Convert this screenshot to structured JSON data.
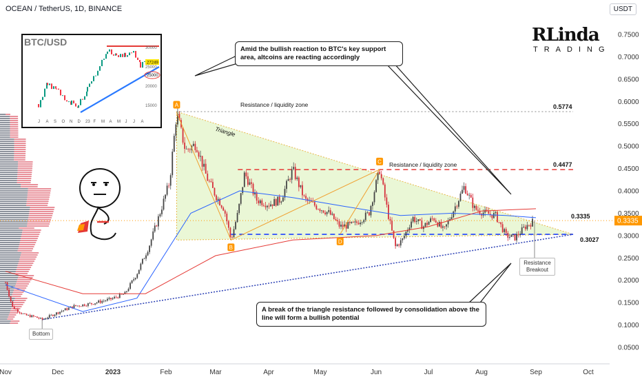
{
  "header": {
    "title": "OCEAN / TetherUS, 1D, BINANCE",
    "currency": "USDT"
  },
  "brand": {
    "line1": "RLinda",
    "line2": "TRADING"
  },
  "callouts": {
    "top": "Amid the bullish reaction to BTC's key support area, altcoins are reacting accordingly",
    "bottom": "A break of the triangle resistance followed by consolidation above the line will form a bullish potential"
  },
  "labels": {
    "resistance_zone_1": "Resistance / liquidity zone",
    "resistance_zone_2": "Resistance / liquidity zone",
    "triangle": "Triangle",
    "bottom": "Bottom",
    "breakout": "Resistance Breakout",
    "pt_a": "A",
    "pt_b": "B",
    "pt_c": "C",
    "pt_d": "D"
  },
  "colors": {
    "bull": "#089981",
    "bear": "#f23645",
    "candle": "#d6303c",
    "resistance": "#e53935",
    "support": "#1e40ff",
    "trendline": "#2a3fb4",
    "triangle_fill": "#d9f0b5",
    "price_tag": "#ff9800"
  },
  "chart_data": {
    "type": "candlestick",
    "symbol": "OCEAN / TetherUS",
    "timeframe": "1D",
    "exchange": "BINANCE",
    "ylim": [
      0.03,
      0.78
    ],
    "y_ticks": [
      "0.7500",
      "0.7000",
      "0.6500",
      "0.6000",
      "0.5500",
      "0.5000",
      "0.4500",
      "0.4000",
      "0.3500",
      "0.3000",
      "0.2500",
      "0.2000",
      "0.1500",
      "0.1000",
      "0.0500"
    ],
    "x_ticks": [
      "Nov",
      "Dec",
      "2023",
      "Feb",
      "Mar",
      "Apr",
      "May",
      "Jun",
      "Jul",
      "Aug",
      "Sep",
      "Oct"
    ],
    "levels": [
      {
        "label": "0.5774",
        "value": 0.5774,
        "style": "dotted"
      },
      {
        "label": "0.4477",
        "value": 0.4477,
        "style": "dashed"
      },
      {
        "label": "0.3335",
        "value": 0.3335,
        "style": "current"
      },
      {
        "label": "0.3027",
        "value": 0.3027,
        "style": "dashed"
      }
    ],
    "current_price": "0.3335",
    "price_path": [
      [
        "2022-11-01",
        0.195
      ],
      [
        "2022-11-05",
        0.14
      ],
      [
        "2022-11-12",
        0.122
      ],
      [
        "2022-11-18",
        0.118
      ],
      [
        "2022-11-22",
        0.112
      ],
      [
        "2022-12-01",
        0.128
      ],
      [
        "2022-12-10",
        0.142
      ],
      [
        "2022-12-20",
        0.148
      ],
      [
        "2022-12-31",
        0.158
      ],
      [
        "2023-01-08",
        0.17
      ],
      [
        "2023-01-15",
        0.215
      ],
      [
        "2023-01-22",
        0.275
      ],
      [
        "2023-01-28",
        0.345
      ],
      [
        "2023-02-03",
        0.42
      ],
      [
        "2023-02-07",
        0.575
      ],
      [
        "2023-02-12",
        0.49
      ],
      [
        "2023-02-18",
        0.505
      ],
      [
        "2023-02-24",
        0.43
      ],
      [
        "2023-03-01",
        0.39
      ],
      [
        "2023-03-06",
        0.36
      ],
      [
        "2023-03-10",
        0.29
      ],
      [
        "2023-03-14",
        0.35
      ],
      [
        "2023-03-18",
        0.44
      ],
      [
        "2023-03-25",
        0.38
      ],
      [
        "2023-04-01",
        0.37
      ],
      [
        "2023-04-08",
        0.38
      ],
      [
        "2023-04-15",
        0.448
      ],
      [
        "2023-04-22",
        0.38
      ],
      [
        "2023-04-29",
        0.365
      ],
      [
        "2023-05-06",
        0.35
      ],
      [
        "2023-05-12",
        0.32
      ],
      [
        "2023-05-20",
        0.325
      ],
      [
        "2023-05-28",
        0.35
      ],
      [
        "2023-06-03",
        0.448
      ],
      [
        "2023-06-08",
        0.345
      ],
      [
        "2023-06-12",
        0.275
      ],
      [
        "2023-06-16",
        0.29
      ],
      [
        "2023-06-22",
        0.34
      ],
      [
        "2023-06-28",
        0.32
      ],
      [
        "2023-07-04",
        0.34
      ],
      [
        "2023-07-10",
        0.31
      ],
      [
        "2023-07-16",
        0.36
      ],
      [
        "2023-07-22",
        0.41
      ],
      [
        "2023-07-28",
        0.36
      ],
      [
        "2023-08-03",
        0.35
      ],
      [
        "2023-08-09",
        0.345
      ],
      [
        "2023-08-15",
        0.3
      ],
      [
        "2023-08-20",
        0.295
      ],
      [
        "2023-08-26",
        0.32
      ],
      [
        "2023-08-31",
        0.3335
      ]
    ],
    "moving_averages": [
      {
        "name": "MA short",
        "color": "#2962ff",
        "points": [
          [
            "2022-11-01",
            0.19
          ],
          [
            "2022-12-15",
            0.13
          ],
          [
            "2023-01-15",
            0.16
          ],
          [
            "2023-02-15",
            0.35
          ],
          [
            "2023-03-15",
            0.4
          ],
          [
            "2023-04-15",
            0.385
          ],
          [
            "2023-05-15",
            0.365
          ],
          [
            "2023-06-15",
            0.345
          ],
          [
            "2023-07-15",
            0.35
          ],
          [
            "2023-08-15",
            0.345
          ],
          [
            "2023-09-01",
            0.34
          ]
        ]
      },
      {
        "name": "MA long",
        "color": "#e53935",
        "points": [
          [
            "2022-11-01",
            0.22
          ],
          [
            "2022-12-15",
            0.17
          ],
          [
            "2023-01-20",
            0.17
          ],
          [
            "2023-03-01",
            0.255
          ],
          [
            "2023-04-15",
            0.29
          ],
          [
            "2023-06-01",
            0.3
          ],
          [
            "2023-07-01",
            0.32
          ],
          [
            "2023-08-01",
            0.355
          ],
          [
            "2023-09-01",
            0.36
          ]
        ]
      }
    ],
    "inset": {
      "title": "BTC/USD",
      "y_ticks": [
        "30000",
        "25000",
        "20000",
        "15000"
      ],
      "x_ticks": [
        "J",
        "A",
        "S",
        "O",
        "N",
        "D",
        "23",
        "F",
        "M",
        "A",
        "M",
        "J",
        "J",
        "A"
      ],
      "price_tag": "27249",
      "support_tag": "25000"
    }
  }
}
